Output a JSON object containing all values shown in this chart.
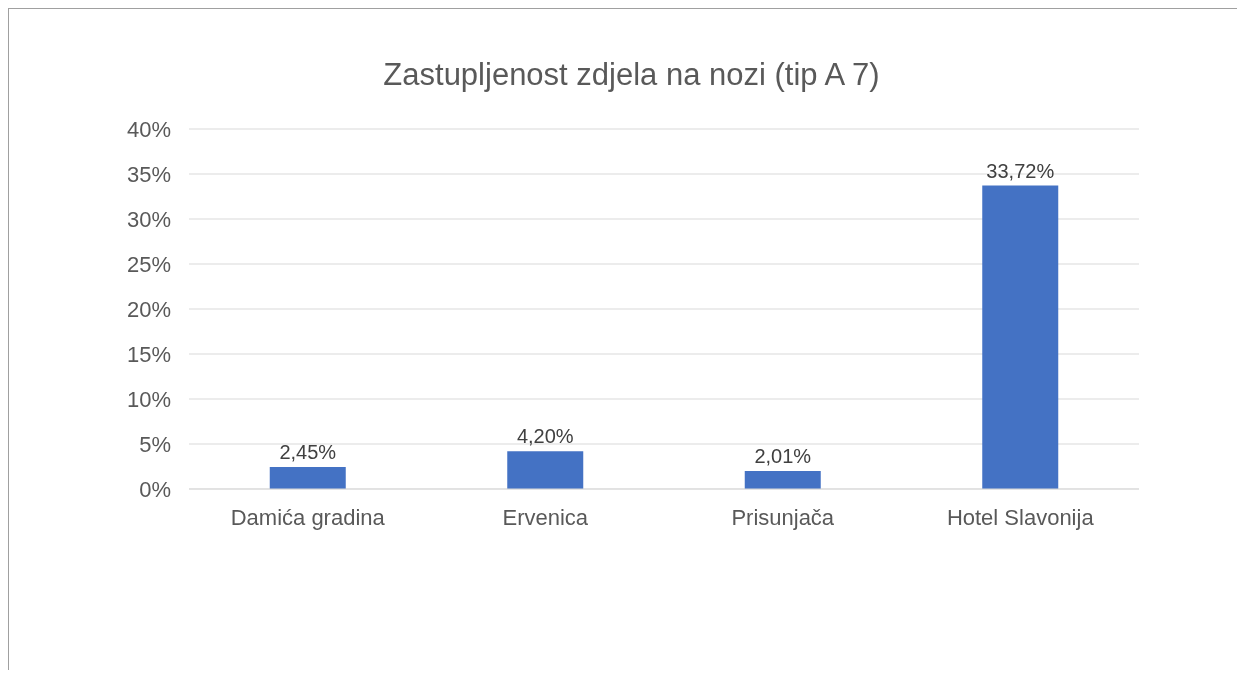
{
  "chart_data": {
    "type": "bar",
    "title": "Zastupljenost zdjela na nozi (tip A 7)",
    "categories": [
      "Damića gradina",
      "Ervenica",
      "Prisunjača",
      "Hotel Slavonija"
    ],
    "values": [
      2.45,
      4.2,
      2.01,
      33.72
    ],
    "color": "#4472c4",
    "value_labels": [
      "2,45%",
      "4,20%",
      "2,01%",
      "33,72%"
    ],
    "ylim": [
      0,
      40
    ],
    "yticks": [
      {
        "value": 0,
        "label": "0%"
      },
      {
        "value": 5,
        "label": "5%"
      },
      {
        "value": 10,
        "label": "10%"
      },
      {
        "value": 15,
        "label": "15%"
      },
      {
        "value": 20,
        "label": "20%"
      },
      {
        "value": 25,
        "label": "25%"
      },
      {
        "value": 30,
        "label": "30%"
      },
      {
        "value": 35,
        "label": "35%"
      },
      {
        "value": 40,
        "label": "40%"
      }
    ],
    "grid": "y",
    "legend": false
  }
}
